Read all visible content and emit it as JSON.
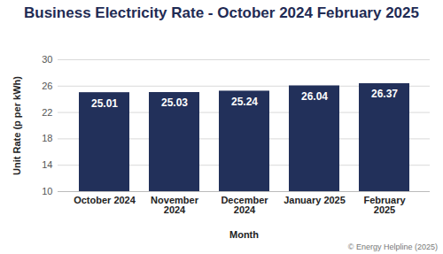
{
  "chart_data": {
    "type": "bar",
    "title": "Business Electricity Rate - October 2024 February 2025",
    "x_label": "Month",
    "y_label": "Unit Rate (p per kWh)",
    "caption": "© Energy Helpline (2025)",
    "categories": [
      "October 2024",
      "November 2024",
      "December 2024",
      "January 2025",
      "February 2025"
    ],
    "values": [
      25.01,
      25.03,
      25.24,
      26.04,
      26.37
    ],
    "color": "#22305a",
    "ylim": [
      10,
      30
    ],
    "yticks": [
      10,
      14,
      18,
      22,
      26,
      30
    ],
    "grid": true,
    "data_labels": true
  }
}
